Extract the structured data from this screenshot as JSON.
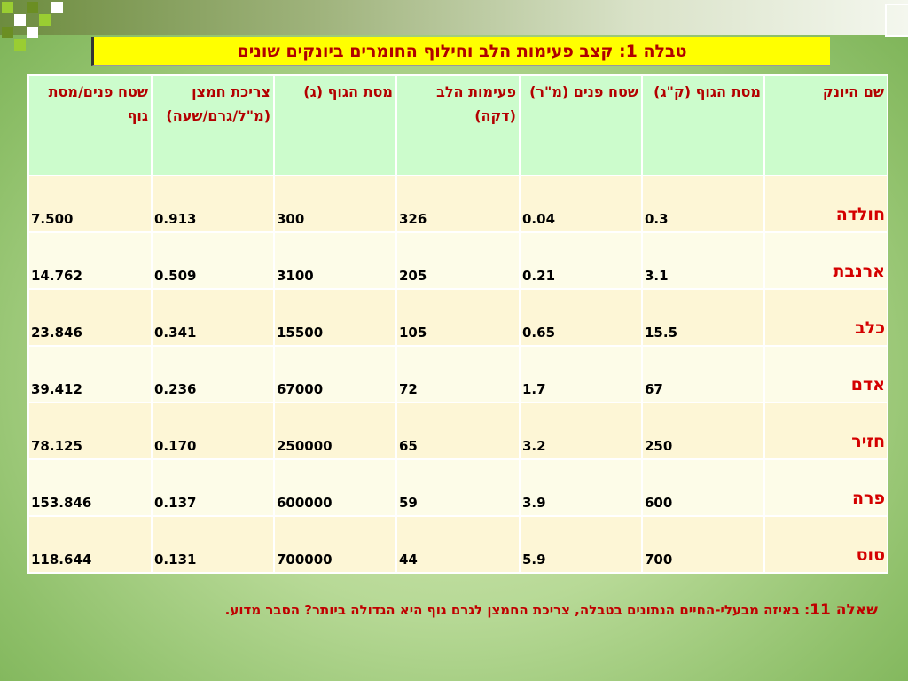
{
  "slide": {
    "title": "טבלה 1: קצב פעימות הלב וחילוף החומרים ביונקים שונים",
    "question_label": "שאלה 11",
    "question_text": ": באיזה מבעלי-החיים הנתונים בטבלה, צריכת החמצן לגרם גוף היא הגדולה ביותר? הסבר מדוע."
  },
  "table": {
    "headers": [
      "שם היונק",
      "מסת הגוף (ק\"ג)",
      "שטח פנים (מ\"ר)",
      "פעימות הלב (דקה)",
      "מסת הגוף (ג)",
      "צריכת חמצן (מ\"ל/גרם/שעה)",
      "שטח פנים/מסת גוף"
    ],
    "rows": [
      [
        "חולדה",
        "0.3",
        "0.04",
        "326",
        "300",
        "0.913",
        "7.500"
      ],
      [
        "ארנבת",
        "3.1",
        "0.21",
        "205",
        "3100",
        "0.509",
        "14.762"
      ],
      [
        "כלב",
        "15.5",
        "0.65",
        "105",
        "15500",
        "0.341",
        "23.846"
      ],
      [
        "אדם",
        "67",
        "1.7",
        "72",
        "67000",
        "0.236",
        "39.412"
      ],
      [
        "חזיר",
        "250",
        "3.2",
        "65",
        "250000",
        "0.170",
        "78.125"
      ],
      [
        "פרה",
        "600",
        "3.9",
        "59",
        "600000",
        "0.137",
        "153.846"
      ],
      [
        "סוס",
        "700",
        "5.9",
        "44",
        "700000",
        "0.131",
        "118.644"
      ]
    ]
  },
  "colors": {
    "title_bg": "#ffff00",
    "title_text": "#b00000",
    "header_bg": "#ccfccc",
    "accent_red": "#d40000",
    "row_bg": "#fdf6d6",
    "row_bg_alt": "#fdfce8"
  }
}
